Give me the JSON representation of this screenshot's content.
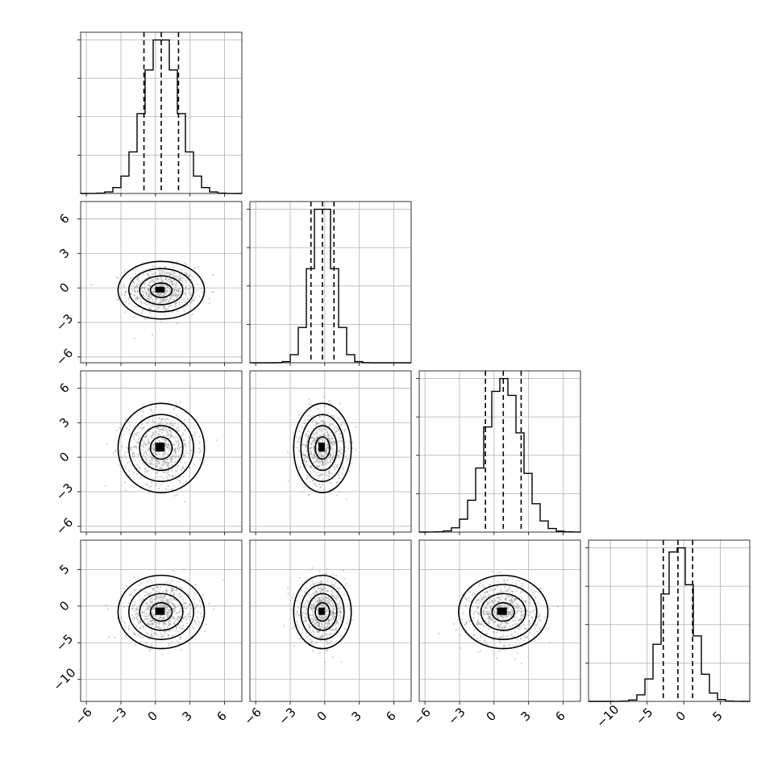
{
  "chart_data": {
    "type": "corner",
    "variables": [
      {
        "mean": 0.5,
        "sd": 1.5,
        "range": [
          -6.5,
          7.5
        ],
        "ticks": [
          -6,
          -3,
          0,
          3,
          6
        ],
        "quantiles": [
          -1.0,
          0.5,
          2.0
        ]
      },
      {
        "mean": -0.2,
        "sd": 1.0,
        "range": [
          -6.5,
          7.5
        ],
        "ticks": [
          -6,
          -3,
          0,
          3,
          6
        ],
        "quantiles": [
          -1.2,
          -0.2,
          0.8
        ]
      },
      {
        "mean": 0.8,
        "sd": 1.55,
        "range": [
          -6.5,
          7.5
        ],
        "ticks": [
          -6,
          -3,
          0,
          3,
          6
        ],
        "quantiles": [
          -0.75,
          0.8,
          2.35
        ]
      },
      {
        "mean": -0.8,
        "sd": 2.0,
        "range": [
          -13,
          9
        ],
        "ticks": [
          -10,
          -5,
          0,
          5
        ],
        "quantiles": [
          -2.8,
          -0.8,
          1.2
        ]
      }
    ],
    "hist_bins": 20,
    "quantile_levels": [
      0.16,
      0.5,
      0.84
    ],
    "contour_sigma_levels": [
      0.5,
      1.0,
      1.5,
      2.0
    ],
    "grid": true,
    "axis_labels": [],
    "title": ""
  }
}
